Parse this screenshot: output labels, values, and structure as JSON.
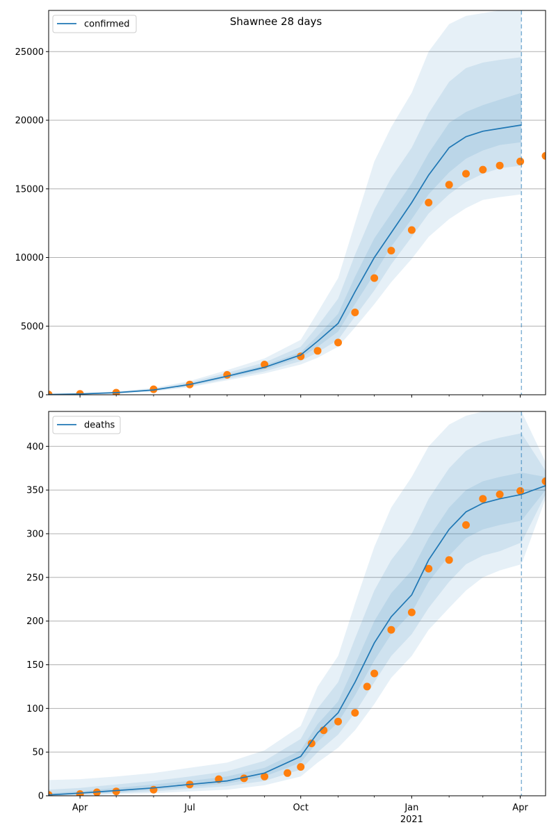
{
  "figure": {
    "title": "Shawnee 28 days"
  },
  "colors": {
    "model_line": "#1f77b4",
    "observed_points": "#ff7f0e",
    "band": "#1f77b4",
    "grid": "#b0b0b0",
    "forecast_line": "#1f77b4"
  },
  "x_axis": {
    "type": "date",
    "range": [
      "2020-03-06",
      "2021-04-22"
    ],
    "major_ticks": [
      {
        "date": "2020-04-01",
        "label": "Apr"
      },
      {
        "date": "2020-07-01",
        "label": "Jul"
      },
      {
        "date": "2020-10-01",
        "label": "Oct"
      },
      {
        "date": "2021-01-01",
        "label": "Jan",
        "sublabel": "2021"
      },
      {
        "date": "2021-04-01",
        "label": "Apr"
      }
    ],
    "minor_ticks": [
      "2020-05-01",
      "2020-06-01",
      "2020-08-01",
      "2020-09-01",
      "2020-11-01",
      "2020-12-01",
      "2021-02-01",
      "2021-03-01"
    ]
  },
  "chart_data": [
    {
      "type": "line",
      "legend": "confirmed",
      "legend_position": "top-left",
      "grid": "horizontal",
      "ylim": [
        0,
        28000
      ],
      "yticks": [
        0,
        5000,
        10000,
        15000,
        20000,
        25000
      ],
      "ytick_labels": [
        "0",
        "5000",
        "10000",
        "15000",
        "20000",
        "25000"
      ],
      "forecast_start": "2021-04-02",
      "model": {
        "x": [
          "2020-03-06",
          "2020-04-01",
          "2020-05-01",
          "2020-06-01",
          "2020-07-01",
          "2020-08-01",
          "2020-09-01",
          "2020-10-01",
          "2020-10-15",
          "2020-11-01",
          "2020-11-15",
          "2020-12-01",
          "2020-12-15",
          "2021-01-01",
          "2021-01-15",
          "2021-02-01",
          "2021-02-15",
          "2021-03-01",
          "2021-03-15",
          "2021-04-02"
        ],
        "median": [
          20,
          60,
          150,
          350,
          750,
          1350,
          2000,
          2900,
          3900,
          5200,
          7500,
          10000,
          11800,
          14000,
          16000,
          18000,
          18800,
          19200,
          19400,
          19650
        ],
        "band_50": [
          [
            15,
            55,
            130,
            320,
            700,
            1250,
            1850,
            2700,
            3500,
            4600,
            6600,
            8800,
            10800,
            12800,
            14600,
            16200,
            17200,
            17800,
            18200,
            18400
          ],
          [
            25,
            70,
            170,
            380,
            800,
            1450,
            2150,
            3100,
            4300,
            5900,
            8600,
            11400,
            13200,
            15400,
            17600,
            19800,
            20600,
            21100,
            21500,
            22000
          ]
        ],
        "band_80": [
          [
            10,
            40,
            110,
            280,
            620,
            1150,
            1700,
            2450,
            3100,
            4000,
            5700,
            7600,
            9500,
            11500,
            13200,
            14600,
            15500,
            16100,
            16500,
            16700
          ],
          [
            35,
            90,
            200,
            430,
            900,
            1600,
            2350,
            3500,
            5000,
            7000,
            10200,
            13500,
            15800,
            18000,
            20500,
            22800,
            23800,
            24200,
            24400,
            24600
          ]
        ],
        "band_95": [
          [
            5,
            30,
            90,
            240,
            550,
            1050,
            1550,
            2200,
            2700,
            3500,
            4900,
            6600,
            8200,
            9900,
            11500,
            12800,
            13600,
            14200,
            14400,
            14600
          ],
          [
            50,
            110,
            240,
            500,
            1000,
            1800,
            2650,
            4000,
            6000,
            8500,
            12500,
            17000,
            19500,
            22000,
            25000,
            27000,
            27600,
            27800,
            28000,
            28000
          ]
        ]
      },
      "observed": {
        "x": [
          "2020-03-06",
          "2020-04-01",
          "2020-05-01",
          "2020-06-01",
          "2020-07-01",
          "2020-08-01",
          "2020-09-01",
          "2020-10-01",
          "2020-10-15",
          "2020-11-01",
          "2020-11-15",
          "2020-12-01",
          "2020-12-15",
          "2021-01-01",
          "2021-01-15",
          "2021-02-01",
          "2021-02-15",
          "2021-03-01",
          "2021-03-15",
          "2021-04-01",
          "2021-04-22"
        ],
        "y": [
          20,
          60,
          150,
          400,
          750,
          1450,
          2200,
          2800,
          3200,
          3800,
          6000,
          8500,
          10500,
          12000,
          14000,
          15300,
          16100,
          16400,
          16700,
          17000,
          17400
        ]
      }
    },
    {
      "type": "line",
      "legend": "deaths",
      "legend_position": "top-left",
      "grid": "horizontal",
      "ylim": [
        0,
        440
      ],
      "yticks": [
        0,
        50,
        100,
        150,
        200,
        250,
        300,
        350,
        400
      ],
      "ytick_labels": [
        "0",
        "50",
        "100",
        "150",
        "200",
        "250",
        "300",
        "350",
        "400"
      ],
      "forecast_start": "2021-04-02",
      "model": {
        "x": [
          "2020-03-06",
          "2020-04-01",
          "2020-05-01",
          "2020-06-01",
          "2020-07-01",
          "2020-08-01",
          "2020-09-01",
          "2020-10-01",
          "2020-10-15",
          "2020-11-01",
          "2020-11-15",
          "2020-12-01",
          "2020-12-15",
          "2021-01-01",
          "2021-01-15",
          "2021-02-01",
          "2021-02-15",
          "2021-03-01",
          "2021-03-15",
          "2021-04-02",
          "2021-04-22"
        ],
        "median": [
          1,
          3,
          6,
          9,
          13,
          17,
          26,
          45,
          72,
          95,
          130,
          175,
          205,
          230,
          270,
          305,
          325,
          335,
          340,
          345,
          355
        ],
        "band_50": [
          [
            0,
            2,
            4,
            7,
            10,
            14,
            22,
            38,
            62,
            84,
            115,
            155,
            185,
            210,
            245,
            275,
            295,
            305,
            310,
            315,
            350
          ],
          [
            3,
            5,
            9,
            13,
            17,
            22,
            32,
            52,
            82,
            108,
            150,
            200,
            232,
            258,
            295,
            330,
            350,
            360,
            365,
            370,
            365
          ]
        ],
        "band_80": [
          [
            0,
            1,
            3,
            5,
            8,
            11,
            17,
            30,
            50,
            70,
            95,
            130,
            160,
            185,
            215,
            245,
            265,
            275,
            280,
            290,
            345
          ],
          [
            7,
            9,
            13,
            17,
            22,
            28,
            40,
            65,
            100,
            130,
            180,
            235,
            270,
            300,
            340,
            375,
            395,
            405,
            410,
            415,
            372
          ]
        ],
        "band_95": [
          [
            0,
            0,
            2,
            3,
            5,
            7,
            12,
            22,
            38,
            55,
            75,
            105,
            135,
            160,
            190,
            215,
            235,
            250,
            258,
            265,
            340
          ],
          [
            18,
            19,
            22,
            26,
            32,
            38,
            52,
            80,
            125,
            160,
            220,
            285,
            330,
            365,
            400,
            425,
            435,
            440,
            440,
            440,
            382
          ]
        ]
      },
      "observed": {
        "x": [
          "2020-03-06",
          "2020-04-01",
          "2020-04-15",
          "2020-05-01",
          "2020-06-01",
          "2020-07-01",
          "2020-07-25",
          "2020-08-15",
          "2020-09-01",
          "2020-09-20",
          "2020-10-01",
          "2020-10-10",
          "2020-10-20",
          "2020-11-01",
          "2020-11-15",
          "2020-11-25",
          "2020-12-01",
          "2020-12-15",
          "2021-01-01",
          "2021-01-15",
          "2021-02-01",
          "2021-02-15",
          "2021-03-01",
          "2021-03-15",
          "2021-04-01",
          "2021-04-22"
        ],
        "y": [
          1,
          2,
          4,
          5,
          7,
          13,
          19,
          20,
          22,
          26,
          33,
          60,
          75,
          85,
          95,
          125,
          140,
          190,
          210,
          260,
          270,
          310,
          340,
          345,
          349,
          360
        ]
      }
    }
  ]
}
